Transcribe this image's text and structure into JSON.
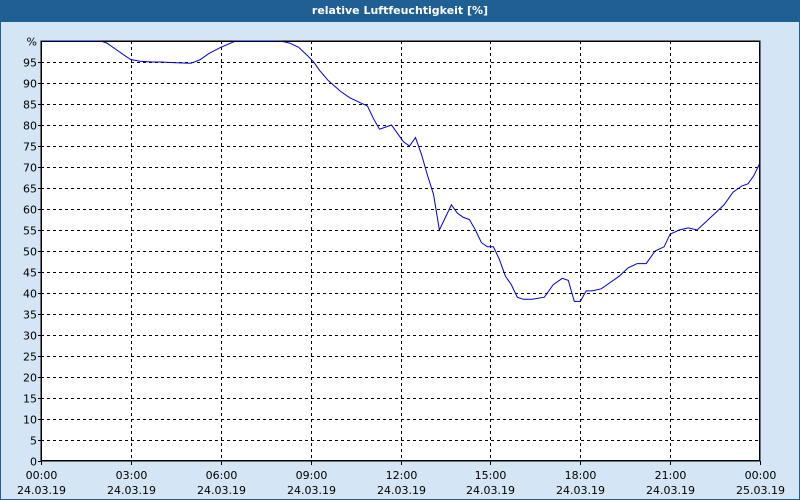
{
  "window": {
    "title": "relative Luftfeuchtigkeit [%]"
  },
  "chart_data": {
    "type": "line",
    "title": "relative Luftfeuchtigkeit [%]",
    "ylabel": "%",
    "ylim": [
      0,
      100
    ],
    "yticks": [
      0,
      5,
      10,
      15,
      20,
      25,
      30,
      35,
      40,
      45,
      50,
      55,
      60,
      65,
      70,
      75,
      80,
      85,
      90,
      95
    ],
    "xlim": [
      0,
      24
    ],
    "xticks": [
      {
        "x": 0,
        "time": "00:00",
        "date": "24.03.19"
      },
      {
        "x": 3,
        "time": "03:00",
        "date": "24.03.19"
      },
      {
        "x": 6,
        "time": "06:00",
        "date": "24.03.19"
      },
      {
        "x": 9,
        "time": "09:00",
        "date": "24.03.19"
      },
      {
        "x": 12,
        "time": "12:00",
        "date": "24.03.19"
      },
      {
        "x": 15,
        "time": "15:00",
        "date": "24.03.19"
      },
      {
        "x": 18,
        "time": "18:00",
        "date": "24.03.19"
      },
      {
        "x": 21,
        "time": "21:00",
        "date": "24.03.19"
      },
      {
        "x": 24,
        "time": "00:00",
        "date": "25.03.19"
      }
    ],
    "grid": true,
    "colors": {
      "line": "#0000cc",
      "plot_bg": "#ffffff",
      "grid": "#000000"
    },
    "series": [
      {
        "x": [
          0,
          0.5,
          1,
          1.5,
          2,
          2.2,
          2.5,
          2.8,
          3,
          3.3,
          3.7,
          4,
          4.5,
          5,
          5.3,
          5.6,
          6,
          6.5,
          7,
          7.5,
          8,
          8.3,
          8.6,
          8.9,
          9.1,
          9.3,
          9.6,
          10,
          10.3,
          10.6,
          10.9,
          11.1,
          11.3,
          11.5,
          11.7,
          11.9,
          12.1,
          12.3,
          12.5,
          12.7,
          12.9,
          13.1,
          13.3,
          13.5,
          13.7,
          13.9,
          14.1,
          14.3,
          14.5,
          14.7,
          14.9,
          15.1,
          15.3,
          15.5,
          15.7,
          15.9,
          16.1,
          16.4,
          16.8,
          17.1,
          17.4,
          17.6,
          17.8,
          18,
          18.2,
          18.4,
          18.7,
          19,
          19.3,
          19.6,
          19.9,
          20.2,
          20.5,
          20.8,
          21,
          21.3,
          21.6,
          21.9,
          22.2,
          22.5,
          22.8,
          23.1,
          23.4,
          23.6,
          23.8,
          24
        ],
        "y": [
          100,
          100,
          100,
          100,
          100,
          99.5,
          98,
          96.5,
          95.6,
          95.2,
          95,
          95,
          94.8,
          94.7,
          95.5,
          97,
          98.5,
          100,
          100,
          100,
          100,
          99.5,
          98.5,
          96.5,
          95,
          93,
          90.5,
          88,
          86.5,
          85.5,
          84.5,
          81.5,
          79,
          79.5,
          80,
          78,
          76,
          75,
          77,
          73,
          68,
          63.5,
          55,
          58,
          61,
          59,
          58,
          57.5,
          55,
          52,
          51,
          51,
          48,
          44,
          42,
          39,
          38.5,
          38.5,
          39,
          42,
          43.5,
          43,
          38,
          38,
          40.5,
          40.5,
          41,
          42.5,
          44,
          46,
          47,
          47,
          50,
          51,
          54,
          55,
          55.5,
          55,
          57,
          59,
          61,
          64,
          65.5,
          66,
          68,
          71
        ]
      }
    ]
  }
}
